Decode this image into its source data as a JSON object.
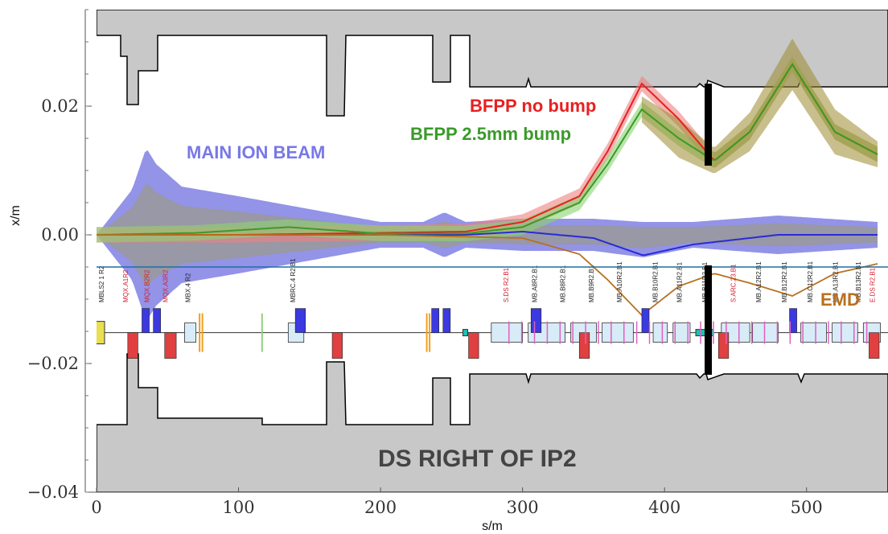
{
  "chart_data": {
    "type": "line",
    "title": "",
    "xlabel": "s/m",
    "ylabel": "x/m",
    "xlim": [
      0,
      550
    ],
    "ylim": [
      -0.04,
      0.035
    ],
    "x_ticks": [
      0,
      100,
      200,
      300,
      400,
      500
    ],
    "y_ticks": [
      -0.04,
      -0.02,
      0.0,
      0.02
    ],
    "x_tick_labels": [
      "0",
      "100",
      "200",
      "300",
      "400",
      "500"
    ],
    "y_tick_labels": [
      "−0.04",
      "−0.02",
      "0.00",
      "0.02"
    ],
    "reference_line_y": -0.005,
    "annotations": {
      "bfpp_no_bump": "BFPP no bump",
      "bfpp_bump": "BFPP 2.5mm bump",
      "main_ion_beam": "MAIN ION BEAM",
      "emd": "EMD",
      "region": "DS RIGHT OF IP2"
    },
    "colors": {
      "main_ion_beam_band": "#6f6fe0",
      "main_ion_beam_line": "#2a2ad8",
      "gray_band": "#9a9a8a",
      "bfpp_no_bump": "#e82020",
      "bfpp_no_bump_band": "#f08080",
      "bfpp_bump": "#3a9a2a",
      "bfpp_bump_band": "#8ad470",
      "emd": "#b87020",
      "aperture": "#c8c8c8",
      "reference_line": "#1f6fa0"
    },
    "series": [
      {
        "name": "MAIN ION BEAM",
        "x": [
          0,
          25,
          35,
          42,
          60,
          100,
          150,
          200,
          230,
          245,
          260,
          300,
          350,
          385,
          420,
          480,
          550
        ],
        "upper": [
          0,
          0.007,
          0.0135,
          0.011,
          0.0075,
          0.006,
          0.004,
          0.002,
          0.002,
          0.0035,
          0.002,
          0.0025,
          0.0025,
          0.002,
          0.002,
          0.003,
          0.002
        ],
        "lower": [
          0,
          -0.007,
          -0.0135,
          -0.011,
          -0.0075,
          -0.006,
          -0.004,
          -0.002,
          -0.002,
          -0.0035,
          -0.002,
          -0.0025,
          -0.0025,
          -0.0035,
          -0.002,
          -0.003,
          -0.002
        ],
        "center": [
          0,
          0,
          0,
          0,
          0,
          0,
          0,
          0,
          0,
          0,
          0,
          0.0005,
          -0.0005,
          -0.0032,
          -0.0015,
          0,
          0
        ]
      },
      {
        "name": "BFPP no bump",
        "x": [
          0,
          100,
          200,
          260,
          300,
          340,
          360,
          384,
          410,
          435,
          460,
          490,
          520,
          550
        ],
        "values": [
          0,
          0,
          0.0003,
          0.0005,
          0.002,
          0.006,
          0.013,
          0.0235,
          0.018,
          0.0115,
          0.016,
          0.0265,
          0.016,
          0.0125
        ],
        "band_width": 0.0012
      },
      {
        "name": "BFPP 2.5mm bump",
        "x": [
          0,
          70,
          135,
          200,
          260,
          300,
          340,
          360,
          384,
          410,
          435,
          460,
          490,
          520,
          550
        ],
        "values": [
          0,
          0.0003,
          0.0012,
          0.0002,
          0.0002,
          0.0012,
          0.005,
          0.011,
          0.0195,
          0.015,
          0.0115,
          0.016,
          0.0265,
          0.016,
          0.0125
        ],
        "band_width": 0.0012
      },
      {
        "name": "EMD",
        "x": [
          0,
          200,
          300,
          340,
          360,
          384,
          410,
          435,
          460,
          490,
          520,
          550
        ],
        "values": [
          0,
          0,
          -0.0005,
          -0.003,
          -0.007,
          -0.0125,
          -0.008,
          -0.006,
          -0.0075,
          -0.0095,
          -0.006,
          -0.0045
        ]
      }
    ],
    "element_labels": [
      {
        "s": 5,
        "text": "MBLS2 1 R2",
        "color": "black"
      },
      {
        "s": 22,
        "text": "MQX.A1R2",
        "color": "red"
      },
      {
        "s": 37,
        "text": "MQX.B2R2",
        "color": "red"
      },
      {
        "s": 50,
        "text": "MQX.A3R2",
        "color": "red"
      },
      {
        "s": 66,
        "text": "MBX.4 R2",
        "color": "black"
      },
      {
        "s": 140,
        "text": "MBRC.4 R2.B1",
        "color": "black"
      },
      {
        "s": 290,
        "text": "S.DS R2.B1",
        "color": "red"
      },
      {
        "s": 310,
        "text": "MB.A8R2.B1",
        "color": "black"
      },
      {
        "s": 330,
        "text": "MB.B8R2.B1",
        "color": "black"
      },
      {
        "s": 350,
        "text": "MB.B9R2.B1",
        "color": "black"
      },
      {
        "s": 370,
        "text": "MB.A10R2.B1",
        "color": "black"
      },
      {
        "s": 395,
        "text": "MB.B10R2.B1",
        "color": "black"
      },
      {
        "s": 412,
        "text": "MB.A11R2.B1",
        "color": "black"
      },
      {
        "s": 430,
        "text": "MB.B11R2.B1",
        "color": "black"
      },
      {
        "s": 450,
        "text": "S.ARC.23.B1",
        "color": "red"
      },
      {
        "s": 468,
        "text": "MB.A12R2.B1",
        "color": "black"
      },
      {
        "s": 486,
        "text": "MB.B12R2.B1",
        "color": "black"
      },
      {
        "s": 504,
        "text": "MB.C12R2.B1",
        "color": "black"
      },
      {
        "s": 522,
        "text": "MB.A13R2.B1",
        "color": "black"
      },
      {
        "s": 538,
        "text": "MB.B13R2.B1",
        "color": "black"
      },
      {
        "s": 548,
        "text": "E.DS R2.B1",
        "color": "red"
      }
    ]
  }
}
